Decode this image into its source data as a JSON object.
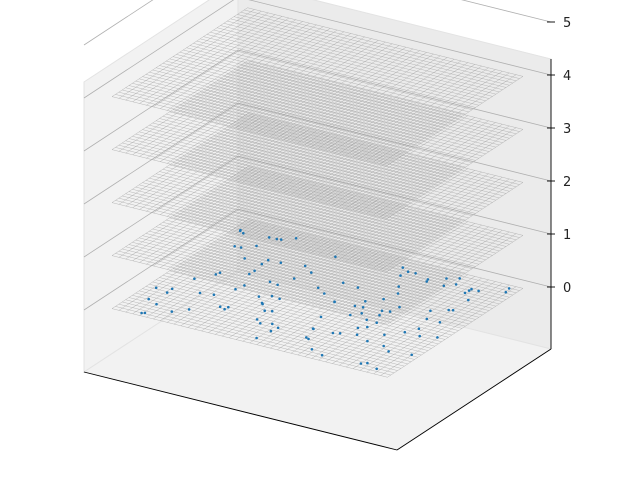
{
  "chart_data": {
    "type": "scatter",
    "title": "",
    "xlabel": "",
    "ylabel": "",
    "zlabel": "",
    "projection": "3d",
    "z_ticks": [
      "0",
      "1",
      "2",
      "3",
      "4",
      "5"
    ],
    "zlim": [
      0,
      5
    ],
    "xlim": [
      0,
      1
    ],
    "ylim": [
      0,
      1
    ],
    "grid": true,
    "wireframe_layers": [
      {
        "z": 0,
        "grid_lines": 40
      },
      {
        "z": 1,
        "grid_lines": 40
      },
      {
        "z": 2,
        "grid_lines": 40
      },
      {
        "z": 3,
        "grid_lines": 40
      },
      {
        "z": 4,
        "grid_lines": 40
      }
    ],
    "scatter_layer_z": 0,
    "point_count": 120,
    "colors": {
      "points": "#1f77b4",
      "wire": "#9a9a9a",
      "pane": "#f2f2f2",
      "pane_edge": "#e3e3e3",
      "axis": "#000000",
      "grid": "#b0b0b0"
    }
  }
}
